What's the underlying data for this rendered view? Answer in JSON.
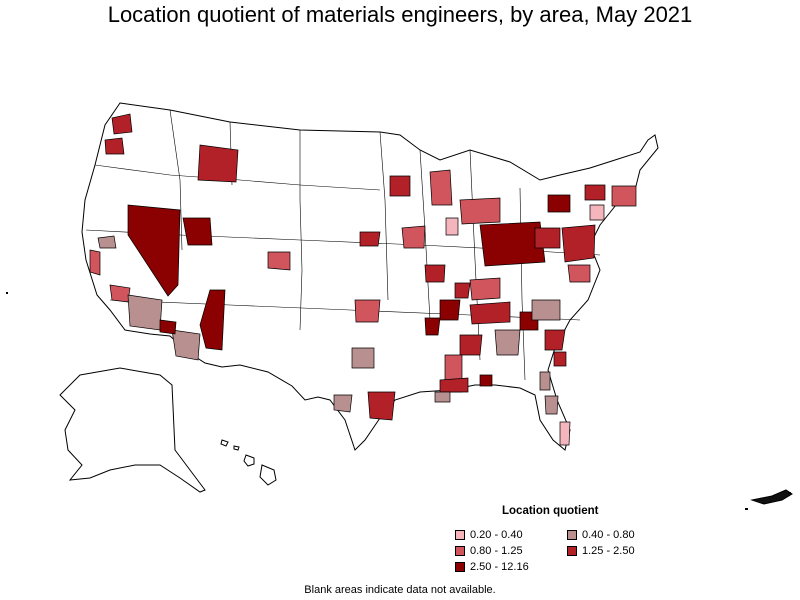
{
  "title": "Location quotient of materials engineers, by area, May 2021",
  "legend": {
    "title": "Location quotient",
    "items": [
      {
        "label": "0.20 - 0.40",
        "color": "#f4b6bc"
      },
      {
        "label": "0.40 - 0.80",
        "color": "#b99090"
      },
      {
        "label": "0.80 - 1.25",
        "color": "#d0555d"
      },
      {
        "label": "1.25 - 2.50",
        "color": "#b22028"
      },
      {
        "label": "2.50 - 12.16",
        "color": "#8b0000"
      }
    ]
  },
  "footnote": "Blank areas indicate data not available."
}
